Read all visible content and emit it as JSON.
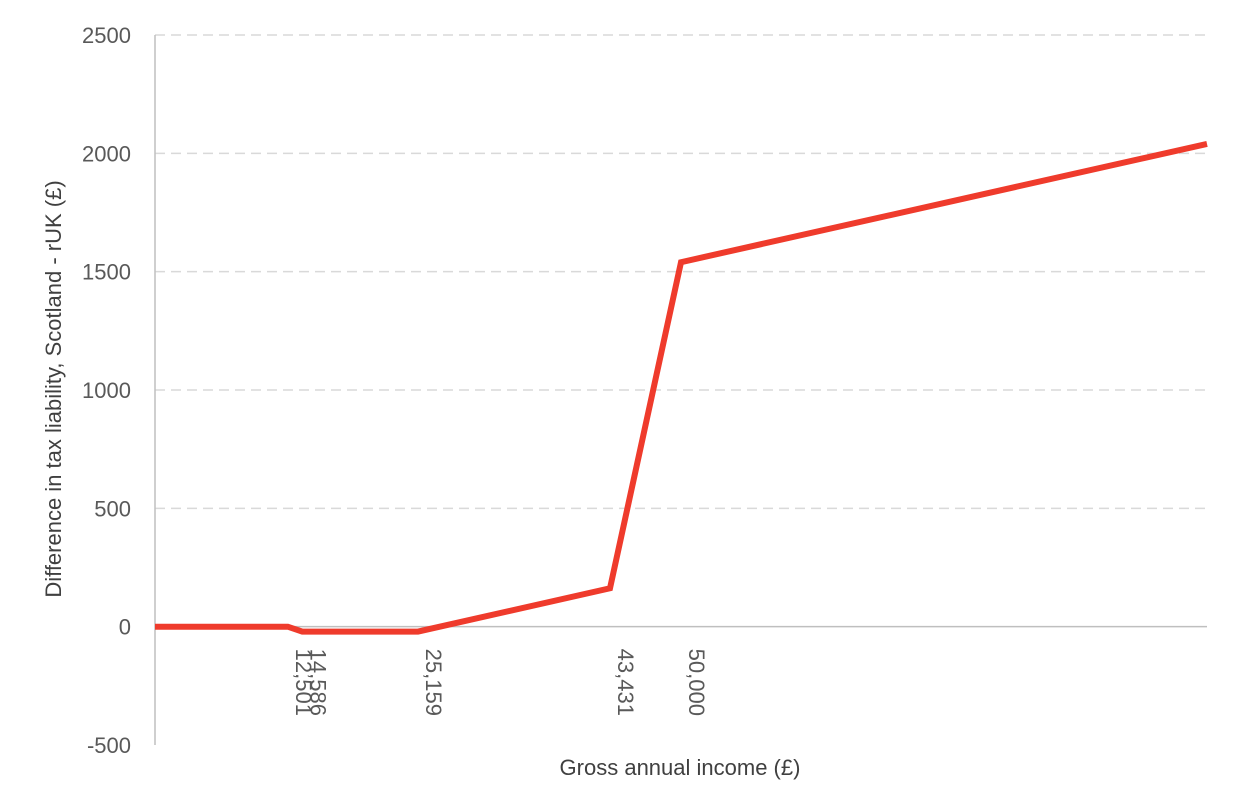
{
  "chart_data": {
    "type": "line",
    "title": "",
    "xlabel": "Gross annual income (£)",
    "ylabel": "Difference in tax liability, Scotland - rUK (£)",
    "xlim": [
      0,
      80000
    ],
    "ylim": [
      -500,
      2500
    ],
    "yticks": [
      -500,
      0,
      500,
      1000,
      1500,
      2000,
      2500
    ],
    "xtick_labels": [
      "12,501",
      "14,586",
      "25,159",
      "43,431",
      "50,000"
    ],
    "xtick_values": [
      12501,
      14586,
      25159,
      43431,
      50000
    ],
    "grid": true,
    "legend": false,
    "color": "#ef3b2c",
    "series": [
      {
        "x": [
          0,
          10100,
          11200,
          20000,
          34600,
          40000,
          80000
        ],
        "y": [
          0,
          0,
          -21,
          -21,
          162,
          1540,
          2040
        ]
      }
    ]
  }
}
